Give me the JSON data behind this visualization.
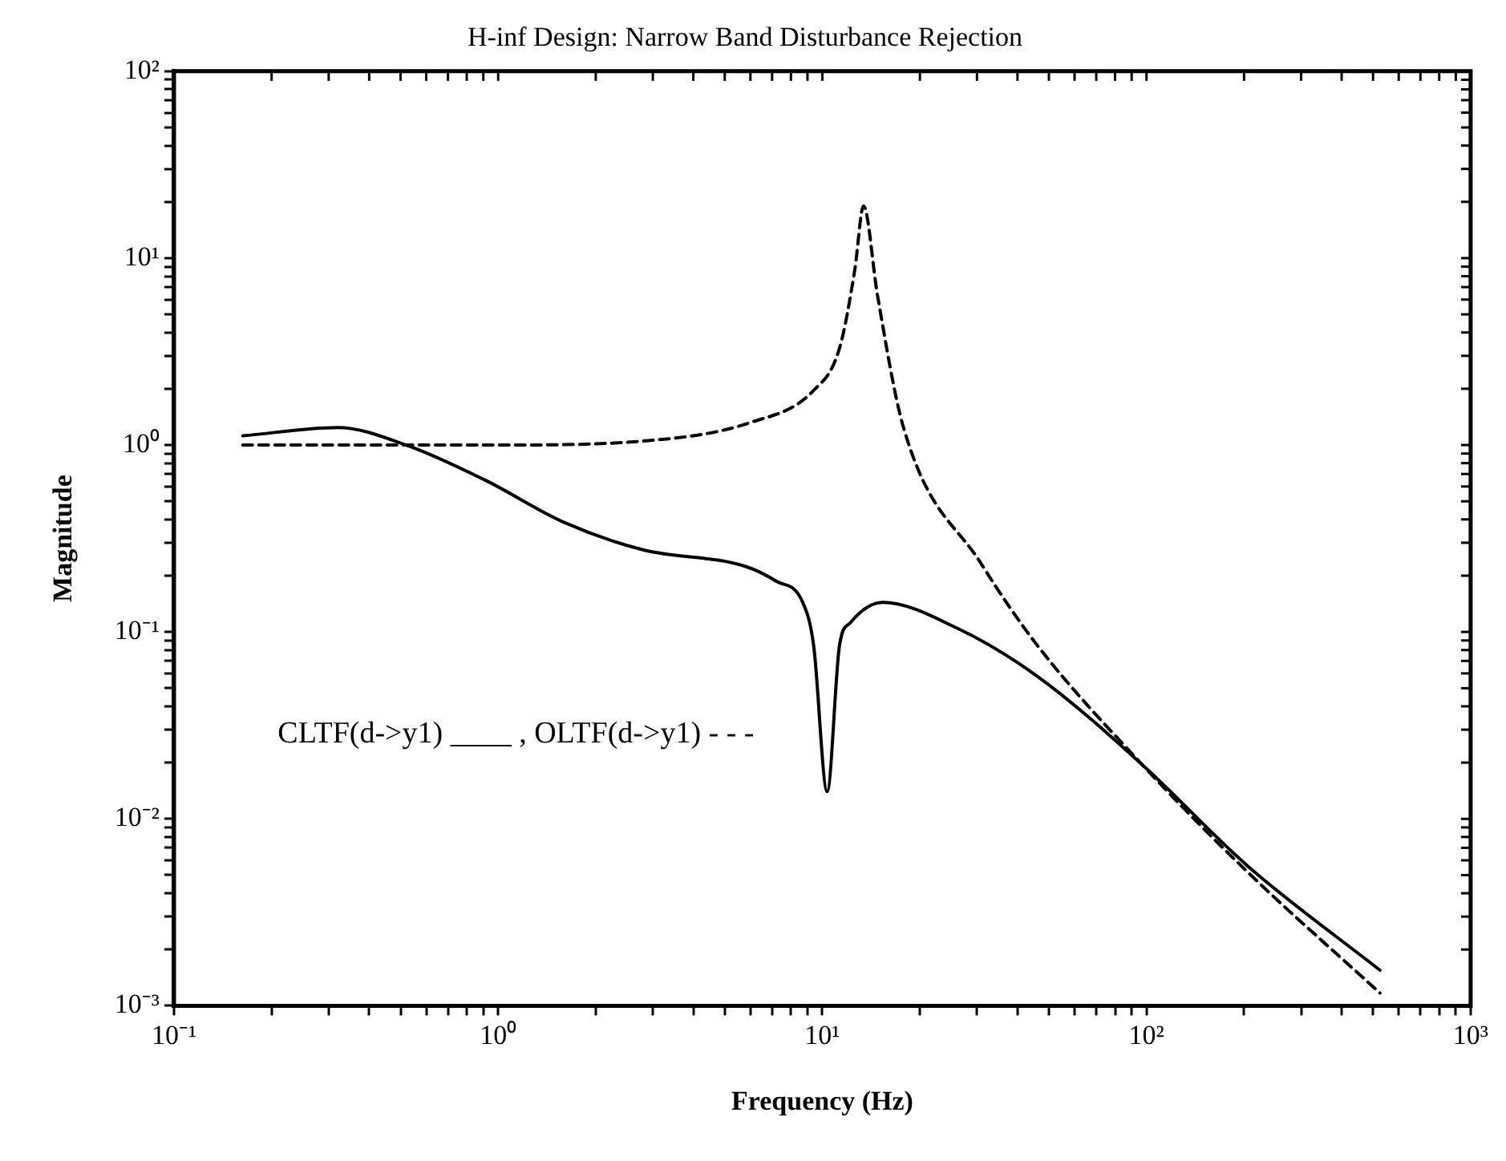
{
  "chart_data": {
    "type": "line",
    "title": "H-inf Design: Narrow Band Disturbance Rejection",
    "xlabel": "Frequency (Hz)",
    "ylabel": "Magnitude",
    "log": "xy",
    "grid": false,
    "legend": false,
    "xlim": [
      0.1,
      1000
    ],
    "ylim": [
      0.001,
      100
    ],
    "xticks": [
      {
        "value": 0.1,
        "label": "10⁻¹"
      },
      {
        "value": 0.2,
        "label": null
      },
      {
        "value": 0.3,
        "label": null
      },
      {
        "value": 0.4,
        "label": null
      },
      {
        "value": 0.5,
        "label": null
      },
      {
        "value": 0.6,
        "label": null
      },
      {
        "value": 0.7,
        "label": null
      },
      {
        "value": 0.8,
        "label": null
      },
      {
        "value": 0.9,
        "label": null
      },
      {
        "value": 1,
        "label": "10⁰"
      },
      {
        "value": 2,
        "label": null
      },
      {
        "value": 3,
        "label": null
      },
      {
        "value": 4,
        "label": null
      },
      {
        "value": 5,
        "label": null
      },
      {
        "value": 6,
        "label": null
      },
      {
        "value": 7,
        "label": null
      },
      {
        "value": 8,
        "label": null
      },
      {
        "value": 9,
        "label": null
      },
      {
        "value": 10,
        "label": "10¹"
      },
      {
        "value": 20,
        "label": null
      },
      {
        "value": 30,
        "label": null
      },
      {
        "value": 40,
        "label": null
      },
      {
        "value": 50,
        "label": null
      },
      {
        "value": 60,
        "label": null
      },
      {
        "value": 70,
        "label": null
      },
      {
        "value": 80,
        "label": null
      },
      {
        "value": 90,
        "label": null
      },
      {
        "value": 100,
        "label": "10²"
      },
      {
        "value": 200,
        "label": null
      },
      {
        "value": 300,
        "label": null
      },
      {
        "value": 400,
        "label": null
      },
      {
        "value": 500,
        "label": null
      },
      {
        "value": 600,
        "label": null
      },
      {
        "value": 700,
        "label": null
      },
      {
        "value": 800,
        "label": null
      },
      {
        "value": 900,
        "label": null
      },
      {
        "value": 1000,
        "label": "10³"
      }
    ],
    "yticks": [
      {
        "value": 0.001,
        "label": "10⁻³"
      },
      {
        "value": 0.002,
        "label": null
      },
      {
        "value": 0.003,
        "label": null
      },
      {
        "value": 0.004,
        "label": null
      },
      {
        "value": 0.005,
        "label": null
      },
      {
        "value": 0.006,
        "label": null
      },
      {
        "value": 0.007,
        "label": null
      },
      {
        "value": 0.008,
        "label": null
      },
      {
        "value": 0.009,
        "label": null
      },
      {
        "value": 0.01,
        "label": "10⁻²"
      },
      {
        "value": 0.02,
        "label": null
      },
      {
        "value": 0.03,
        "label": null
      },
      {
        "value": 0.04,
        "label": null
      },
      {
        "value": 0.05,
        "label": null
      },
      {
        "value": 0.06,
        "label": null
      },
      {
        "value": 0.07,
        "label": null
      },
      {
        "value": 0.08,
        "label": null
      },
      {
        "value": 0.09,
        "label": null
      },
      {
        "value": 0.1,
        "label": "10⁻¹"
      },
      {
        "value": 0.2,
        "label": null
      },
      {
        "value": 0.3,
        "label": null
      },
      {
        "value": 0.4,
        "label": null
      },
      {
        "value": 0.5,
        "label": null
      },
      {
        "value": 0.6,
        "label": null
      },
      {
        "value": 0.7,
        "label": null
      },
      {
        "value": 0.8,
        "label": null
      },
      {
        "value": 0.9,
        "label": null
      },
      {
        "value": 1,
        "label": "10⁰"
      },
      {
        "value": 2,
        "label": null
      },
      {
        "value": 3,
        "label": null
      },
      {
        "value": 4,
        "label": null
      },
      {
        "value": 5,
        "label": null
      },
      {
        "value": 6,
        "label": null
      },
      {
        "value": 7,
        "label": null
      },
      {
        "value": 8,
        "label": null
      },
      {
        "value": 9,
        "label": null
      },
      {
        "value": 10,
        "label": "10¹"
      },
      {
        "value": 20,
        "label": null
      },
      {
        "value": 30,
        "label": null
      },
      {
        "value": 40,
        "label": null
      },
      {
        "value": 50,
        "label": null
      },
      {
        "value": 60,
        "label": null
      },
      {
        "value": 70,
        "label": null
      },
      {
        "value": 80,
        "label": null
      },
      {
        "value": 90,
        "label": null
      },
      {
        "value": 100,
        "label": "10²"
      }
    ],
    "annotations": [
      "CLTF(d->y1) ____ , OLTF(d->y1) - - -"
    ],
    "series": [
      {
        "color": "#000000",
        "line_style": "solid",
        "x": [
          0.163,
          0.32,
          0.52,
          0.91,
          1.6,
          2.8,
          5.8,
          7.2,
          8.7,
          9.4,
          10.35,
          11.3,
          12.2,
          15.3,
          26,
          46,
          97,
          205,
          525
        ],
        "values": [
          1.12,
          1.24,
          1.0,
          0.65,
          0.385,
          0.275,
          0.224,
          0.187,
          0.144,
          0.085,
          0.014,
          0.085,
          0.112,
          0.144,
          0.105,
          0.058,
          0.0195,
          0.0056,
          0.00155
        ]
      },
      {
        "color": "#000000",
        "line_style": "dashed",
        "x": [
          0.163,
          1,
          2.8,
          6.0,
          9.4,
          11.3,
          12.6,
          13.4,
          14.8,
          17.8,
          31,
          46,
          97,
          205,
          525
        ],
        "values": [
          1.0,
          1.0,
          1.05,
          1.32,
          1.96,
          3.3,
          8.7,
          19,
          6.3,
          1.24,
          0.23,
          0.085,
          0.0195,
          0.0052,
          0.00117
        ]
      }
    ]
  }
}
